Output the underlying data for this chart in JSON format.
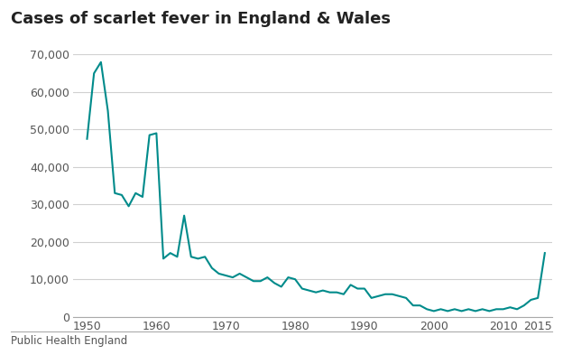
{
  "title": "Cases of scarlet fever in England & Wales",
  "footnote": "Public Health England",
  "line_color": "#008b8b",
  "background_color": "#ffffff",
  "grid_color": "#d0d0d0",
  "ylim": [
    0,
    70000
  ],
  "yticks": [
    0,
    10000,
    20000,
    30000,
    40000,
    50000,
    60000,
    70000
  ],
  "xticks": [
    1950,
    1960,
    1970,
    1980,
    1990,
    2000,
    2010,
    2015
  ],
  "xlim": [
    1948,
    2017
  ],
  "years": [
    1950,
    1951,
    1952,
    1953,
    1954,
    1955,
    1956,
    1957,
    1958,
    1959,
    1960,
    1961,
    1962,
    1963,
    1964,
    1965,
    1966,
    1967,
    1968,
    1969,
    1970,
    1971,
    1972,
    1973,
    1974,
    1975,
    1976,
    1977,
    1978,
    1979,
    1980,
    1981,
    1982,
    1983,
    1984,
    1985,
    1986,
    1987,
    1988,
    1989,
    1990,
    1991,
    1992,
    1993,
    1994,
    1995,
    1996,
    1997,
    1998,
    1999,
    2000,
    2001,
    2002,
    2003,
    2004,
    2005,
    2006,
    2007,
    2008,
    2009,
    2010,
    2011,
    2012,
    2013,
    2014,
    2015,
    2016
  ],
  "cases": [
    47500,
    65000,
    68000,
    55000,
    33000,
    32500,
    29500,
    33000,
    32000,
    48500,
    49000,
    15500,
    17000,
    16000,
    27000,
    16000,
    15500,
    16000,
    13000,
    11500,
    11000,
    10500,
    11500,
    10500,
    9500,
    9500,
    10500,
    9000,
    8000,
    10500,
    10000,
    7500,
    7000,
    6500,
    7000,
    6500,
    6500,
    6000,
    8500,
    7500,
    7500,
    5000,
    5500,
    6000,
    6000,
    5500,
    5000,
    3000,
    3000,
    2000,
    1500,
    2000,
    1500,
    2000,
    1500,
    2000,
    1500,
    2000,
    1500,
    2000,
    2000,
    2500,
    2000,
    3000,
    4500,
    5000,
    17000
  ]
}
